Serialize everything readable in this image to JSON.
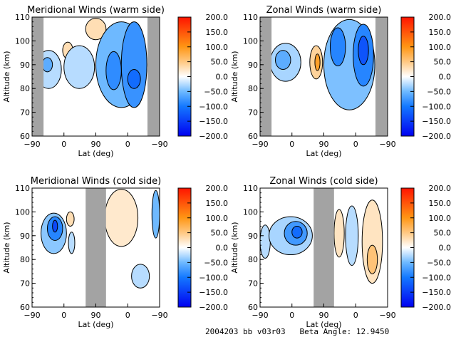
{
  "footer": {
    "text": "2004203 bb v03r03   Beta Angle: 12.9450"
  },
  "chart_data": [
    {
      "type": "heatmap",
      "title": "Meridional Winds (warm side)",
      "xlabel": "Lat (deg)",
      "ylabel": "Altitude (km)",
      "x_tick_labels": [
        "-90",
        "0",
        "90",
        "0",
        "-90"
      ],
      "y_tick_labels": [
        "60",
        "70",
        "80",
        "90",
        "100",
        "110"
      ],
      "ylim": [
        60,
        110
      ],
      "colorbar": {
        "min": -200,
        "max": 200,
        "tick_labels": [
          "200.0",
          "150.0",
          "100.0",
          "50.0",
          "0.0",
          "-50.0",
          "-100.0",
          "-150.0",
          "-200.0"
        ]
      },
      "no_data_lat_fraction": [
        [
          0.0,
          0.09
        ],
        [
          0.905,
          1.0
        ]
      ],
      "features": [
        {
          "x": 0.13,
          "y": 0.56,
          "rx": 0.1,
          "ry": 0.16,
          "value": -25
        },
        {
          "x": 0.12,
          "y": 0.6,
          "rx": 0.04,
          "ry": 0.06,
          "value": -60
        },
        {
          "x": 0.28,
          "y": 0.72,
          "rx": 0.04,
          "ry": 0.07,
          "value": 30
        },
        {
          "x": 0.37,
          "y": 0.58,
          "rx": 0.12,
          "ry": 0.18,
          "value": -25
        },
        {
          "x": 0.5,
          "y": 0.9,
          "rx": 0.08,
          "ry": 0.09,
          "value": 30
        },
        {
          "x": 0.7,
          "y": 0.6,
          "rx": 0.2,
          "ry": 0.36,
          "value": -50
        },
        {
          "x": 0.64,
          "y": 0.55,
          "rx": 0.06,
          "ry": 0.16,
          "value": -85
        },
        {
          "x": 0.8,
          "y": 0.6,
          "rx": 0.1,
          "ry": 0.36,
          "value": -80
        },
        {
          "x": 0.8,
          "y": 0.48,
          "rx": 0.05,
          "ry": 0.08,
          "value": -110
        }
      ]
    },
    {
      "type": "heatmap",
      "title": "Zonal Winds (warm side)",
      "xlabel": "Lat (deg)",
      "ylabel": "Altitude (km)",
      "x_tick_labels": [
        "-90",
        "0",
        "90",
        "0",
        "-90"
      ],
      "y_tick_labels": [
        "60",
        "70",
        "80",
        "90",
        "100",
        "110"
      ],
      "ylim": [
        60,
        110
      ],
      "colorbar": {
        "min": -200,
        "max": 200,
        "tick_labels": [
          "200.0",
          "150.0",
          "100.0",
          "50.0",
          "0.0",
          "-50.0",
          "-100.0",
          "-150.0",
          "-200.0"
        ]
      },
      "no_data_lat_fraction": [
        [
          0.0,
          0.09
        ],
        [
          0.905,
          1.0
        ]
      ],
      "features": [
        {
          "x": 0.2,
          "y": 0.62,
          "rx": 0.12,
          "ry": 0.16,
          "value": -30
        },
        {
          "x": 0.18,
          "y": 0.64,
          "rx": 0.06,
          "ry": 0.08,
          "value": -60
        },
        {
          "x": 0.44,
          "y": 0.62,
          "rx": 0.05,
          "ry": 0.14,
          "value": 40
        },
        {
          "x": 0.45,
          "y": 0.62,
          "rx": 0.02,
          "ry": 0.07,
          "value": 90
        },
        {
          "x": 0.7,
          "y": 0.6,
          "rx": 0.2,
          "ry": 0.38,
          "value": -45
        },
        {
          "x": 0.61,
          "y": 0.75,
          "rx": 0.06,
          "ry": 0.16,
          "value": -90
        },
        {
          "x": 0.81,
          "y": 0.68,
          "rx": 0.08,
          "ry": 0.26,
          "value": -90
        },
        {
          "x": 0.81,
          "y": 0.72,
          "rx": 0.04,
          "ry": 0.12,
          "value": -130
        }
      ]
    },
    {
      "type": "heatmap",
      "title": "Meridional Winds (cold side)",
      "xlabel": "Lat (deg)",
      "ylabel": "Altitude (km)",
      "x_tick_labels": [
        "-90",
        "0",
        "90",
        "0",
        "-90"
      ],
      "y_tick_labels": [
        "60",
        "70",
        "80",
        "90",
        "100",
        "110"
      ],
      "ylim": [
        60,
        110
      ],
      "colorbar": {
        "min": -200,
        "max": 200,
        "tick_labels": [
          "200.0",
          "150.0",
          "100.0",
          "50.0",
          "0.0",
          "-50.0",
          "-100.0",
          "-150.0",
          "-200.0"
        ]
      },
      "no_data_lat_fraction": [
        [
          0.42,
          0.58
        ]
      ],
      "features": [
        {
          "x": 0.17,
          "y": 0.62,
          "rx": 0.1,
          "ry": 0.17,
          "value": -40
        },
        {
          "x": 0.18,
          "y": 0.66,
          "rx": 0.06,
          "ry": 0.1,
          "value": -90
        },
        {
          "x": 0.18,
          "y": 0.68,
          "rx": 0.02,
          "ry": 0.05,
          "value": -140
        },
        {
          "x": 0.3,
          "y": 0.74,
          "rx": 0.03,
          "ry": 0.06,
          "value": 30
        },
        {
          "x": 0.31,
          "y": 0.54,
          "rx": 0.025,
          "ry": 0.09,
          "value": -25
        },
        {
          "x": 0.7,
          "y": 0.75,
          "rx": 0.13,
          "ry": 0.24,
          "value": 20
        },
        {
          "x": 0.85,
          "y": 0.26,
          "rx": 0.07,
          "ry": 0.1,
          "value": -25
        },
        {
          "x": 0.97,
          "y": 0.78,
          "rx": 0.03,
          "ry": 0.2,
          "value": -50
        }
      ]
    },
    {
      "type": "heatmap",
      "title": "Zonal Winds (cold side)",
      "xlabel": "Lat (deg)",
      "ylabel": "Altitude (km)",
      "x_tick_labels": [
        "-90",
        "0",
        "90",
        "0",
        "-90"
      ],
      "y_tick_labels": [
        "60",
        "70",
        "80",
        "90",
        "100",
        "110"
      ],
      "ylim": [
        60,
        110
      ],
      "colorbar": {
        "min": -200,
        "max": 200,
        "tick_labels": [
          "200.0",
          "150.0",
          "100.0",
          "50.0",
          "0.0",
          "-50.0",
          "-100.0",
          "-150.0",
          "-200.0"
        ]
      },
      "no_data_lat_fraction": [
        [
          0.42,
          0.58
        ]
      ],
      "features": [
        {
          "x": 0.04,
          "y": 0.55,
          "rx": 0.04,
          "ry": 0.14,
          "value": -25
        },
        {
          "x": 0.24,
          "y": 0.6,
          "rx": 0.17,
          "ry": 0.16,
          "value": -30
        },
        {
          "x": 0.28,
          "y": 0.62,
          "rx": 0.09,
          "ry": 0.1,
          "value": -75
        },
        {
          "x": 0.29,
          "y": 0.63,
          "rx": 0.04,
          "ry": 0.05,
          "value": -110
        },
        {
          "x": 0.62,
          "y": 0.62,
          "rx": 0.04,
          "ry": 0.2,
          "value": 25
        },
        {
          "x": 0.72,
          "y": 0.6,
          "rx": 0.05,
          "ry": 0.25,
          "value": -25
        },
        {
          "x": 0.88,
          "y": 0.55,
          "rx": 0.08,
          "ry": 0.35,
          "value": 25
        },
        {
          "x": 0.88,
          "y": 0.4,
          "rx": 0.04,
          "ry": 0.12,
          "value": 55
        }
      ]
    }
  ]
}
